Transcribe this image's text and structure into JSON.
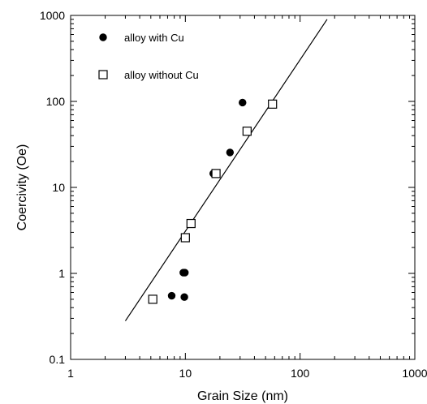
{
  "chart_data": {
    "type": "scatter",
    "xscale": "log",
    "yscale": "log",
    "xlim": [
      1,
      1000
    ],
    "ylim": [
      0.1,
      1000
    ],
    "xticks": [
      "1",
      "10",
      "100",
      "1000"
    ],
    "yticks": [
      "0.1",
      "1",
      "10",
      "100",
      "1000"
    ],
    "xlabel": "Grain Size (nm)",
    "ylabel": "Coercivity (Oe)",
    "legend_position": "top-left",
    "grid": false,
    "series": [
      {
        "name": "alloy with Cu",
        "marker": "filled-circle",
        "color": "#000000",
        "points": [
          {
            "x": 7.6,
            "y": 0.55
          },
          {
            "x": 9.8,
            "y": 0.53
          },
          {
            "x": 9.6,
            "y": 1.02
          },
          {
            "x": 9.9,
            "y": 1.02
          },
          {
            "x": 17.5,
            "y": 14.5
          },
          {
            "x": 24.5,
            "y": 25.5
          },
          {
            "x": 31.5,
            "y": 97
          }
        ]
      },
      {
        "name": "alloy without Cu",
        "marker": "open-square",
        "color": "#000000",
        "points": [
          {
            "x": 5.2,
            "y": 0.5
          },
          {
            "x": 10.0,
            "y": 2.6
          },
          {
            "x": 11.2,
            "y": 3.8
          },
          {
            "x": 18.5,
            "y": 14.5
          },
          {
            "x": 34.5,
            "y": 45
          },
          {
            "x": 57.5,
            "y": 93
          }
        ]
      }
    ],
    "fit_line": {
      "points": [
        {
          "x": 3.0,
          "y": 0.28
        },
        {
          "x": 172,
          "y": 900
        }
      ]
    }
  }
}
